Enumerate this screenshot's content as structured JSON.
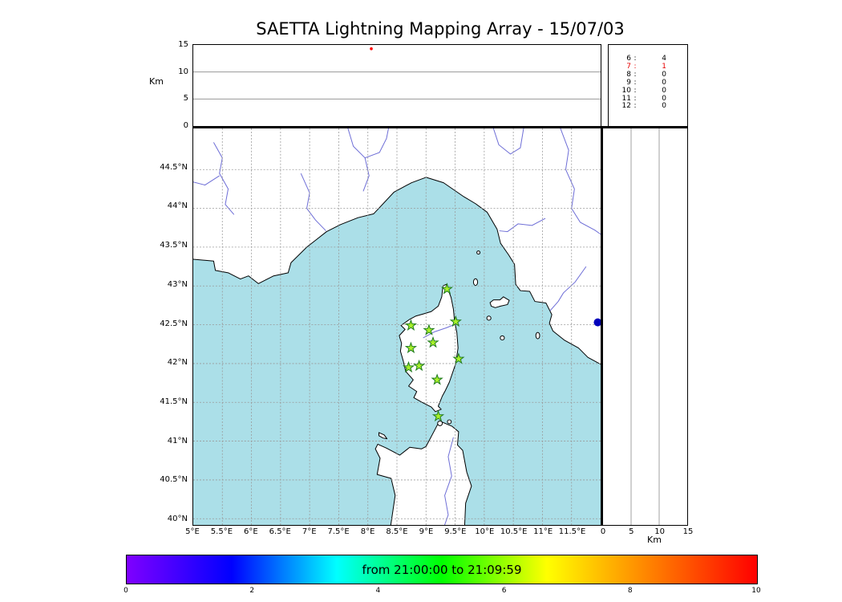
{
  "chart_data": {
    "type": "scatter",
    "title": "SAETTA Lightning Mapping Array - 15/07/03",
    "axis_labels": {
      "altitude_km": "Km",
      "right_altitude_km": "Km"
    },
    "map_panel": {
      "lon_range": [
        5,
        12
      ],
      "lat_range": [
        39.92,
        45.03
      ],
      "lon_ticks": [
        {
          "v": 5,
          "label": "5°E"
        },
        {
          "v": 5.5,
          "label": "5.5°E"
        },
        {
          "v": 6,
          "label": "6°E"
        },
        {
          "v": 6.5,
          "label": "6.5°E"
        },
        {
          "v": 7,
          "label": "7°E"
        },
        {
          "v": 7.5,
          "label": "7.5°E"
        },
        {
          "v": 8,
          "label": "8°E"
        },
        {
          "v": 8.5,
          "label": "8.5°E"
        },
        {
          "v": 9,
          "label": "9°E"
        },
        {
          "v": 9.5,
          "label": "9.5°E"
        },
        {
          "v": 10,
          "label": "10°E"
        },
        {
          "v": 10.5,
          "label": "10.5°E"
        },
        {
          "v": 11,
          "label": "11°E"
        },
        {
          "v": 11.5,
          "label": "11.5°E"
        }
      ],
      "lat_ticks": [
        {
          "v": 40,
          "label": "40°N"
        },
        {
          "v": 40.5,
          "label": "40.5°N"
        },
        {
          "v": 41,
          "label": "41°N"
        },
        {
          "v": 41.5,
          "label": "41.5°N"
        },
        {
          "v": 42,
          "label": "42°N"
        },
        {
          "v": 42.5,
          "label": "42.5°N"
        },
        {
          "v": 43,
          "label": "43°N"
        },
        {
          "v": 43.5,
          "label": "43.5°N"
        },
        {
          "v": 44,
          "label": "44°N"
        },
        {
          "v": 44.5,
          "label": "44.5°N"
        }
      ],
      "sea_color": "#abdfe8",
      "land_color": "#ffffff",
      "river_color": "#5e5ed2",
      "station_marker": {
        "shape": "star",
        "fill": "#a8f02a",
        "stroke": "#1e7a1e"
      },
      "stations": [
        {
          "lon": 9.36,
          "lat": 42.96
        },
        {
          "lon": 8.74,
          "lat": 42.49
        },
        {
          "lon": 9.05,
          "lat": 42.43
        },
        {
          "lon": 9.51,
          "lat": 42.54
        },
        {
          "lon": 8.74,
          "lat": 42.2
        },
        {
          "lon": 9.12,
          "lat": 42.27
        },
        {
          "lon": 8.7,
          "lat": 41.95
        },
        {
          "lon": 8.88,
          "lat": 41.97
        },
        {
          "lon": 9.56,
          "lat": 42.06
        },
        {
          "lon": 9.19,
          "lat": 41.79
        },
        {
          "lon": 9.21,
          "lat": 41.32
        }
      ],
      "sources": [
        {
          "lon": 11.95,
          "lat": 42.53,
          "color": "#0000bb"
        }
      ]
    },
    "altitude_panel": {
      "alt_range_km": [
        0,
        15
      ],
      "alt_ticks": [
        {
          "v": 0,
          "label": "0"
        },
        {
          "v": 5,
          "label": "5"
        },
        {
          "v": 10,
          "label": "10"
        },
        {
          "v": 15,
          "label": "15"
        }
      ],
      "sources": [
        {
          "lon": 8.06,
          "alt_km": 14.3,
          "color": "#ff0000"
        }
      ]
    },
    "right_panel": {
      "alt_range_km": [
        0,
        15
      ],
      "alt_ticks": [
        {
          "v": 0,
          "label": "0"
        },
        {
          "v": 5,
          "label": "5"
        },
        {
          "v": 10,
          "label": "10"
        },
        {
          "v": 15,
          "label": "15"
        }
      ]
    },
    "station_counts": [
      {
        "station": "6",
        "count": 4,
        "color": "#000000"
      },
      {
        "station": "7",
        "count": 1,
        "color": "#e60000"
      },
      {
        "station": "8",
        "count": 0,
        "color": "#000000"
      },
      {
        "station": "9",
        "count": 0,
        "color": "#000000"
      },
      {
        "station": "10",
        "count": 0,
        "color": "#000000"
      },
      {
        "station": "11",
        "count": 0,
        "color": "#000000"
      },
      {
        "station": "12",
        "count": 0,
        "color": "#000000"
      }
    ],
    "colorbar": {
      "range": [
        0,
        10
      ],
      "ticks": [
        {
          "v": 0,
          "label": "0"
        },
        {
          "v": 2,
          "label": "2"
        },
        {
          "v": 4,
          "label": "4"
        },
        {
          "v": 6,
          "label": "6"
        },
        {
          "v": 8,
          "label": "8"
        },
        {
          "v": 10,
          "label": "10"
        }
      ],
      "label": "from 21:00:00 to 21:09:59",
      "gradient_colors": [
        "#7f00ff",
        "#0000ff",
        "#00ffff",
        "#00ff00",
        "#ffff00",
        "#ff7f00",
        "#ff0000"
      ]
    }
  }
}
